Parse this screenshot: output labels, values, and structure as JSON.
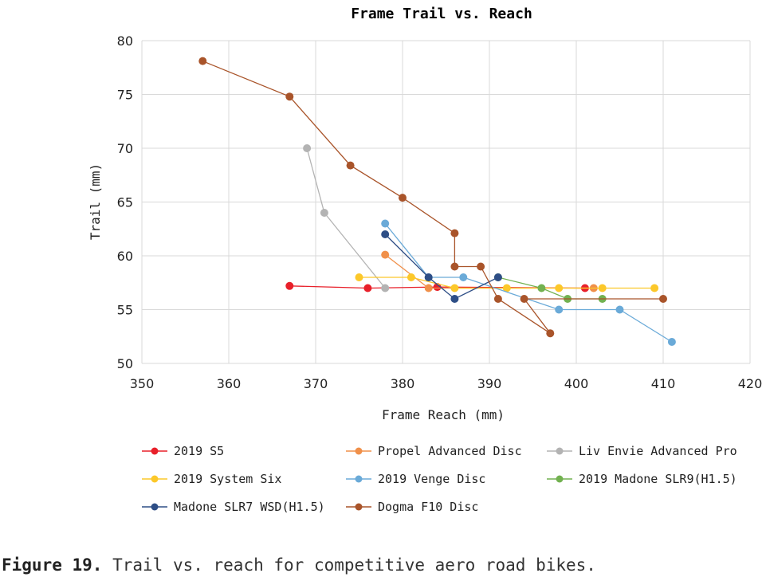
{
  "chart_data": {
    "type": "line",
    "title": "Frame Trail vs. Reach",
    "xlabel": "Frame Reach (mm)",
    "ylabel": "Trail (mm)",
    "xlim": [
      350,
      420
    ],
    "ylim": [
      50,
      80
    ],
    "xticks": [
      "350",
      "360",
      "370",
      "380",
      "390",
      "400",
      "410",
      "420"
    ],
    "yticks": [
      "50",
      "55",
      "60",
      "65",
      "70",
      "75",
      "80"
    ],
    "grid": true,
    "legend_position": "bottom",
    "series": [
      {
        "name": "2019 S5",
        "color": "#e8202a",
        "points": [
          [
            367,
            57.2
          ],
          [
            376,
            57.0
          ],
          [
            384,
            57.1
          ],
          [
            401,
            57.0
          ]
        ]
      },
      {
        "name": "Propel Advanced Disc",
        "color": "#f0904a",
        "points": [
          [
            378,
            60.1
          ],
          [
            383,
            57.0
          ],
          [
            402,
            57.0
          ]
        ]
      },
      {
        "name": "Liv Envie Advanced Pro",
        "color": "#b3b3b3",
        "points": [
          [
            369,
            70.0
          ],
          [
            371,
            64.0
          ],
          [
            378,
            57.0
          ]
        ]
      },
      {
        "name": "2019 System Six",
        "color": "#fcc82a",
        "points": [
          [
            375,
            58.0
          ],
          [
            381,
            58.0
          ],
          [
            386,
            57.0
          ],
          [
            392,
            57.0
          ],
          [
            398,
            57.0
          ],
          [
            403,
            57.0
          ],
          [
            409,
            57.0
          ]
        ]
      },
      {
        "name": "2019 Venge Disc",
        "color": "#6aaad8",
        "points": [
          [
            378,
            63.0
          ],
          [
            383,
            58.0
          ],
          [
            387,
            58.0
          ],
          [
            398,
            55.0
          ],
          [
            405,
            55.0
          ],
          [
            411,
            52.0
          ]
        ]
      },
      {
        "name": "2019 Madone SLR9(H1.5)",
        "color": "#72b150",
        "points": [
          [
            391,
            58.0
          ],
          [
            396,
            57.0
          ],
          [
            399,
            56.0
          ],
          [
            403,
            56.0
          ]
        ]
      },
      {
        "name": "Madone SLR7 WSD(H1.5)",
        "color": "#2e4e86",
        "points": [
          [
            378,
            62.0
          ],
          [
            383,
            58.0
          ],
          [
            386,
            56.0
          ],
          [
            391,
            58.0
          ]
        ]
      },
      {
        "name": "Dogma F10 Disc",
        "color": "#a9542a",
        "points": [
          [
            357,
            78.1
          ],
          [
            367,
            74.8
          ],
          [
            374,
            68.4
          ],
          [
            380,
            65.4
          ],
          [
            386,
            62.1
          ],
          [
            386,
            59.0
          ],
          [
            389,
            59.0
          ],
          [
            391,
            56.0
          ],
          [
            397,
            52.8
          ],
          [
            394,
            56.0
          ],
          [
            410,
            56.0
          ]
        ]
      }
    ]
  },
  "caption": {
    "label": "Figure 19.",
    "text": " Trail vs. reach for competitive aero road bikes."
  }
}
